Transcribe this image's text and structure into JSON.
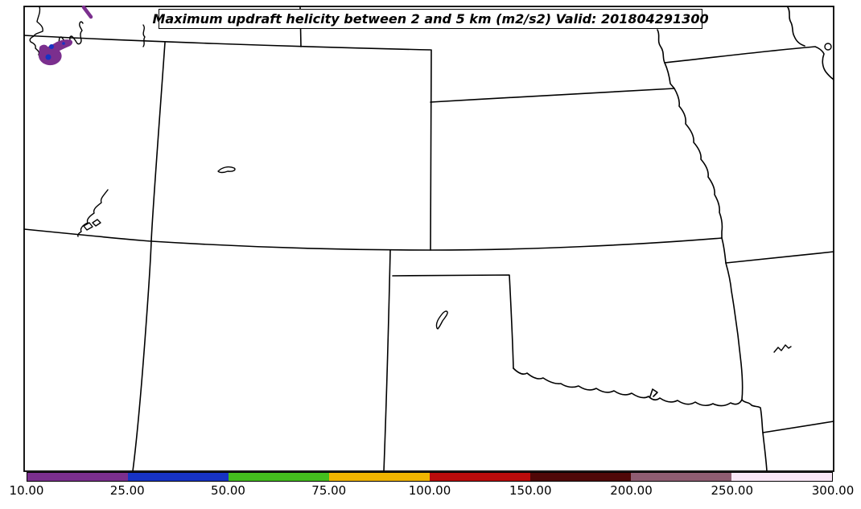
{
  "figure": {
    "title": "Maximum updraft helicity between 2 and 5 km (m2/s2) Valid: 201804291300",
    "background_color": "#ffffff",
    "frame_color": "#000000"
  },
  "colorbar": {
    "orientation": "horizontal",
    "tick_labels": [
      "10.00",
      "25.00",
      "50.00",
      "75.00",
      "100.00",
      "150.00",
      "200.00",
      "250.00",
      "300.00"
    ],
    "segments": [
      {
        "from": 10,
        "to": 25,
        "color": "#7B2F8E"
      },
      {
        "from": 25,
        "to": 50,
        "color": "#1733C4"
      },
      {
        "from": 50,
        "to": 75,
        "color": "#44BE1E"
      },
      {
        "from": 75,
        "to": 100,
        "color": "#F0B400"
      },
      {
        "from": 100,
        "to": 150,
        "color": "#BA0C0C"
      },
      {
        "from": 150,
        "to": 200,
        "color": "#500808"
      },
      {
        "from": 200,
        "to": 250,
        "color": "#8F5D72"
      },
      {
        "from": 250,
        "to": 300,
        "color": "#FAE7F7"
      }
    ]
  },
  "map": {
    "line_color": "#000000",
    "helicity_patches": [
      {
        "level": "10-25",
        "color": "#7B2F8E"
      },
      {
        "level": "25-50",
        "color": "#1733C4"
      }
    ]
  },
  "chart_data": {
    "type": "map",
    "title": "Maximum updraft helicity between 2 and 5 km (m2/s2) Valid: 201804291300",
    "units": "m2/s2",
    "valid_time": "201804291300",
    "colorbar_levels": [
      10,
      25,
      50,
      75,
      100,
      150,
      200,
      250,
      300
    ],
    "colorbar_colors": [
      "#7B2F8E",
      "#1733C4",
      "#44BE1E",
      "#F0B400",
      "#BA0C0C",
      "#500808",
      "#8F5D72",
      "#FAE7F7"
    ],
    "legend_position": "bottom"
  }
}
